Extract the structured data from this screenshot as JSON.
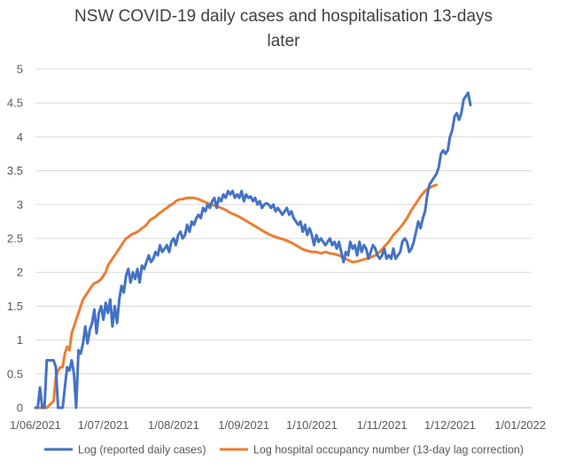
{
  "chart_data": {
    "type": "line",
    "title": [
      "NSW COVID-19 daily cases and hospitalisation 13-days",
      "later"
    ],
    "xlabel": "",
    "ylabel": "",
    "x_ticks": [
      "1/06/2021",
      "1/07/2021",
      "1/08/2021",
      "1/09/2021",
      "1/10/2021",
      "1/11/2021",
      "1/12/2021",
      "1/01/2022"
    ],
    "x_tick_days": [
      0,
      30,
      61,
      92,
      122,
      153,
      183,
      214
    ],
    "xlim": [
      0,
      219
    ],
    "ylim": [
      0,
      5
    ],
    "y_ticks": [
      0,
      0.5,
      1,
      1.5,
      2,
      2.5,
      3,
      3.5,
      4,
      4.5,
      5
    ],
    "grid": "horizontal",
    "legend_position": "bottom",
    "colors": {
      "cases": "#4472C4",
      "hospital": "#ED7D31",
      "grid": "#D9D9D9",
      "axis": "#BFBFBF"
    },
    "series": [
      {
        "name": "Log (reported daily cases)",
        "color": "#4472C4",
        "points": [
          [
            0,
            0
          ],
          [
            1,
            0
          ],
          [
            2,
            0.3
          ],
          [
            3,
            0
          ],
          [
            4,
            0
          ],
          [
            5,
            0.7
          ],
          [
            6,
            0.7
          ],
          [
            7,
            0.7
          ],
          [
            8,
            0.7
          ],
          [
            9,
            0.6
          ],
          [
            10,
            0
          ],
          [
            11,
            0
          ],
          [
            12,
            0
          ],
          [
            13,
            0.3
          ],
          [
            14,
            0.6
          ],
          [
            15,
            0.55
          ],
          [
            16,
            0.7
          ],
          [
            17,
            0.5
          ],
          [
            18,
            0
          ],
          [
            19,
            0.85
          ],
          [
            20,
            0.8
          ],
          [
            21,
            0.95
          ],
          [
            22,
            1.2
          ],
          [
            23,
            0.95
          ],
          [
            24,
            1.15
          ],
          [
            25,
            1.25
          ],
          [
            26,
            1.45
          ],
          [
            27,
            1.1
          ],
          [
            28,
            1.4
          ],
          [
            29,
            1.5
          ],
          [
            30,
            1.3
          ],
          [
            31,
            1.55
          ],
          [
            32,
            1.4
          ],
          [
            33,
            1.6
          ],
          [
            34,
            1.2
          ],
          [
            35,
            1.5
          ],
          [
            36,
            1.25
          ],
          [
            37,
            1.6
          ],
          [
            38,
            1.8
          ],
          [
            39,
            1.7
          ],
          [
            40,
            1.95
          ],
          [
            41,
            2.05
          ],
          [
            42,
            1.85
          ],
          [
            43,
            2.0
          ],
          [
            44,
            1.9
          ],
          [
            45,
            2.05
          ],
          [
            46,
            1.85
          ],
          [
            47,
            2.1
          ],
          [
            48,
            2.05
          ],
          [
            49,
            2.15
          ],
          [
            50,
            2.25
          ],
          [
            51,
            2.15
          ],
          [
            52,
            2.2
          ],
          [
            53,
            2.3
          ],
          [
            54,
            2.25
          ],
          [
            55,
            2.4
          ],
          [
            56,
            2.3
          ],
          [
            57,
            2.35
          ],
          [
            58,
            2.4
          ],
          [
            59,
            2.3
          ],
          [
            60,
            2.45
          ],
          [
            61,
            2.5
          ],
          [
            62,
            2.4
          ],
          [
            63,
            2.55
          ],
          [
            64,
            2.6
          ],
          [
            65,
            2.5
          ],
          [
            66,
            2.55
          ],
          [
            67,
            2.7
          ],
          [
            68,
            2.6
          ],
          [
            69,
            2.75
          ],
          [
            70,
            2.7
          ],
          [
            71,
            2.8
          ],
          [
            72,
            2.85
          ],
          [
            73,
            2.8
          ],
          [
            74,
            2.95
          ],
          [
            75,
            2.9
          ],
          [
            76,
            3.0
          ],
          [
            77,
            2.95
          ],
          [
            78,
            3.05
          ],
          [
            79,
            3.1
          ],
          [
            80,
            2.95
          ],
          [
            81,
            3.1
          ],
          [
            82,
            3.05
          ],
          [
            83,
            3.15
          ],
          [
            84,
            3.1
          ],
          [
            85,
            3.2
          ],
          [
            86,
            3.15
          ],
          [
            87,
            3.2
          ],
          [
            88,
            3.1
          ],
          [
            89,
            3.15
          ],
          [
            90,
            3.1
          ],
          [
            91,
            3.2
          ],
          [
            92,
            3.05
          ],
          [
            93,
            3.15
          ],
          [
            94,
            3.1
          ],
          [
            95,
            3.12
          ],
          [
            96,
            3.05
          ],
          [
            97,
            3.1
          ],
          [
            98,
            3.0
          ],
          [
            99,
            3.05
          ],
          [
            100,
            2.95
          ],
          [
            101,
            3.0
          ],
          [
            102,
            3.02
          ],
          [
            103,
            3.0
          ],
          [
            104,
            2.95
          ],
          [
            105,
            3.0
          ],
          [
            106,
            2.9
          ],
          [
            107,
            2.95
          ],
          [
            108,
            2.9
          ],
          [
            109,
            2.85
          ],
          [
            110,
            2.9
          ],
          [
            111,
            2.95
          ],
          [
            112,
            2.85
          ],
          [
            113,
            2.9
          ],
          [
            114,
            2.8
          ],
          [
            115,
            2.75
          ],
          [
            116,
            2.7
          ],
          [
            117,
            2.75
          ],
          [
            118,
            2.6
          ],
          [
            119,
            2.7
          ],
          [
            120,
            2.55
          ],
          [
            121,
            2.65
          ],
          [
            122,
            2.55
          ],
          [
            123,
            2.4
          ],
          [
            124,
            2.55
          ],
          [
            125,
            2.45
          ],
          [
            126,
            2.5
          ],
          [
            127,
            2.45
          ],
          [
            128,
            2.4
          ],
          [
            129,
            2.45
          ],
          [
            130,
            2.5
          ],
          [
            131,
            2.4
          ],
          [
            132,
            2.45
          ],
          [
            133,
            2.35
          ],
          [
            134,
            2.45
          ],
          [
            135,
            2.3
          ],
          [
            136,
            2.15
          ],
          [
            137,
            2.3
          ],
          [
            138,
            2.25
          ],
          [
            139,
            2.45
          ],
          [
            140,
            2.35
          ],
          [
            141,
            2.4
          ],
          [
            142,
            2.25
          ],
          [
            143,
            2.45
          ],
          [
            144,
            2.3
          ],
          [
            145,
            2.4
          ],
          [
            146,
            2.35
          ],
          [
            147,
            2.2
          ],
          [
            148,
            2.3
          ],
          [
            149,
            2.4
          ],
          [
            150,
            2.35
          ],
          [
            151,
            2.25
          ],
          [
            152,
            2.2
          ],
          [
            153,
            2.25
          ],
          [
            154,
            2.35
          ],
          [
            155,
            2.2
          ],
          [
            156,
            2.25
          ],
          [
            157,
            2.2
          ],
          [
            158,
            2.35
          ],
          [
            159,
            2.2
          ],
          [
            160,
            2.25
          ],
          [
            161,
            2.3
          ],
          [
            162,
            2.45
          ],
          [
            163,
            2.5
          ],
          [
            164,
            2.45
          ],
          [
            165,
            2.3
          ],
          [
            166,
            2.35
          ],
          [
            167,
            2.45
          ],
          [
            168,
            2.6
          ],
          [
            169,
            2.75
          ],
          [
            170,
            2.65
          ],
          [
            171,
            2.8
          ],
          [
            172,
            2.9
          ],
          [
            173,
            3.15
          ],
          [
            174,
            3.3
          ],
          [
            175,
            3.35
          ],
          [
            176,
            3.4
          ],
          [
            177,
            3.45
          ],
          [
            178,
            3.55
          ],
          [
            179,
            3.75
          ],
          [
            180,
            3.8
          ],
          [
            181,
            3.75
          ],
          [
            182,
            3.8
          ],
          [
            183,
            4.0
          ],
          [
            184,
            4.1
          ],
          [
            185,
            4.3
          ],
          [
            186,
            4.35
          ],
          [
            187,
            4.25
          ],
          [
            188,
            4.35
          ],
          [
            189,
            4.55
          ],
          [
            190,
            4.6
          ],
          [
            191,
            4.65
          ],
          [
            192,
            4.47
          ]
        ]
      },
      {
        "name": "Log hospital occupancy number (13-day lag correction)",
        "color": "#ED7D31",
        "points": [
          [
            0,
            0
          ],
          [
            5,
            0
          ],
          [
            8,
            0.1
          ],
          [
            9,
            0.45
          ],
          [
            10,
            0.55
          ],
          [
            11,
            0.6
          ],
          [
            12,
            0.6
          ],
          [
            13,
            0.8
          ],
          [
            14,
            0.9
          ],
          [
            15,
            0.85
          ],
          [
            16,
            1.1
          ],
          [
            17,
            1.2
          ],
          [
            18,
            1.3
          ],
          [
            19,
            1.4
          ],
          [
            20,
            1.5
          ],
          [
            21,
            1.6
          ],
          [
            22,
            1.65
          ],
          [
            23,
            1.7
          ],
          [
            24,
            1.75
          ],
          [
            25,
            1.8
          ],
          [
            26,
            1.84
          ],
          [
            27,
            1.85
          ],
          [
            28,
            1.87
          ],
          [
            29,
            1.9
          ],
          [
            30,
            1.95
          ],
          [
            31,
            2.0
          ],
          [
            32,
            2.1
          ],
          [
            33,
            2.15
          ],
          [
            34,
            2.2
          ],
          [
            35,
            2.25
          ],
          [
            36,
            2.3
          ],
          [
            37,
            2.35
          ],
          [
            38,
            2.4
          ],
          [
            39,
            2.45
          ],
          [
            40,
            2.5
          ],
          [
            41,
            2.52
          ],
          [
            42,
            2.55
          ],
          [
            43,
            2.57
          ],
          [
            44,
            2.58
          ],
          [
            45,
            2.6
          ],
          [
            46,
            2.62
          ],
          [
            47,
            2.65
          ],
          [
            48,
            2.67
          ],
          [
            49,
            2.7
          ],
          [
            50,
            2.75
          ],
          [
            51,
            2.78
          ],
          [
            52,
            2.8
          ],
          [
            53,
            2.82
          ],
          [
            54,
            2.85
          ],
          [
            55,
            2.88
          ],
          [
            56,
            2.9
          ],
          [
            57,
            2.93
          ],
          [
            58,
            2.95
          ],
          [
            59,
            2.98
          ],
          [
            60,
            3.0
          ],
          [
            61,
            3.02
          ],
          [
            62,
            3.05
          ],
          [
            63,
            3.07
          ],
          [
            64,
            3.08
          ],
          [
            65,
            3.08
          ],
          [
            66,
            3.09
          ],
          [
            67,
            3.1
          ],
          [
            68,
            3.1
          ],
          [
            69,
            3.1
          ],
          [
            70,
            3.1
          ],
          [
            72,
            3.08
          ],
          [
            74,
            3.05
          ],
          [
            76,
            3.02
          ],
          [
            78,
            3.0
          ],
          [
            80,
            2.97
          ],
          [
            82,
            2.95
          ],
          [
            84,
            2.92
          ],
          [
            86,
            2.88
          ],
          [
            88,
            2.85
          ],
          [
            90,
            2.82
          ],
          [
            92,
            2.78
          ],
          [
            94,
            2.74
          ],
          [
            96,
            2.7
          ],
          [
            98,
            2.66
          ],
          [
            100,
            2.62
          ],
          [
            102,
            2.58
          ],
          [
            104,
            2.55
          ],
          [
            106,
            2.52
          ],
          [
            108,
            2.5
          ],
          [
            110,
            2.48
          ],
          [
            112,
            2.45
          ],
          [
            114,
            2.42
          ],
          [
            116,
            2.38
          ],
          [
            118,
            2.34
          ],
          [
            120,
            2.32
          ],
          [
            122,
            2.3
          ],
          [
            124,
            2.3
          ],
          [
            126,
            2.28
          ],
          [
            128,
            2.3
          ],
          [
            130,
            2.28
          ],
          [
            132,
            2.27
          ],
          [
            134,
            2.25
          ],
          [
            136,
            2.22
          ],
          [
            138,
            2.18
          ],
          [
            140,
            2.15
          ],
          [
            142,
            2.16
          ],
          [
            144,
            2.18
          ],
          [
            146,
            2.2
          ],
          [
            148,
            2.22
          ],
          [
            150,
            2.25
          ],
          [
            152,
            2.3
          ],
          [
            154,
            2.38
          ],
          [
            156,
            2.45
          ],
          [
            158,
            2.55
          ],
          [
            160,
            2.62
          ],
          [
            162,
            2.7
          ],
          [
            164,
            2.8
          ],
          [
            166,
            2.92
          ],
          [
            168,
            3.02
          ],
          [
            170,
            3.12
          ],
          [
            172,
            3.2
          ],
          [
            174,
            3.25
          ],
          [
            176,
            3.28
          ],
          [
            177,
            3.29
          ]
        ]
      }
    ]
  }
}
